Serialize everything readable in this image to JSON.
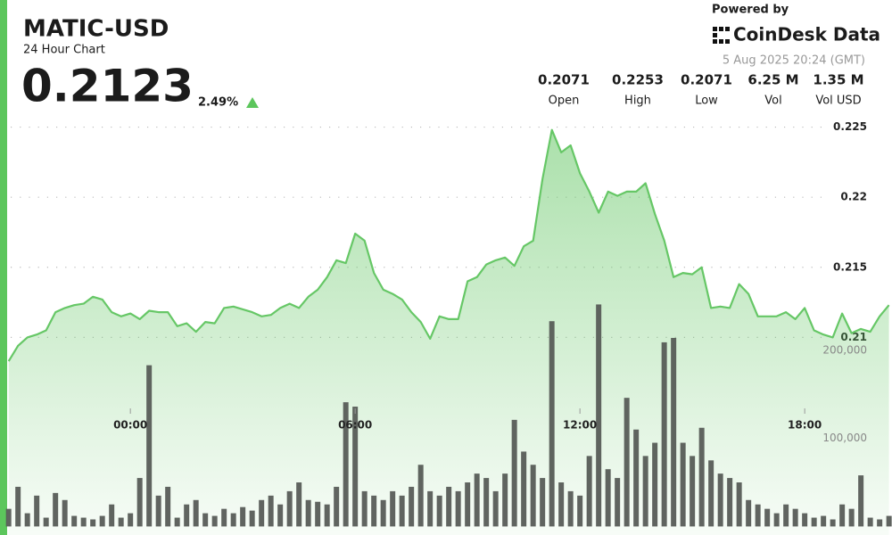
{
  "header": {
    "title": "MATIC-USD",
    "subtitle": "24 Hour Chart",
    "price": "0.2123",
    "change": "2.49%",
    "powered": "Powered by",
    "brand": "CoinDesk Data",
    "timestamp": "5 Aug 2025 20:24 (GMT)"
  },
  "stats": [
    {
      "value": "0.2071",
      "label": "Open"
    },
    {
      "value": "0.2253",
      "label": "High"
    },
    {
      "value": "0.2071",
      "label": "Low"
    },
    {
      "value": "6.25 M",
      "label": "Vol"
    },
    {
      "value": "1.35 M",
      "label": "Vol USD"
    }
  ],
  "chart_data": {
    "type": "line",
    "x": [
      -3.25,
      -3,
      -2.75,
      -2.5,
      -2.25,
      -2,
      -1.75,
      -1.5,
      -1.25,
      -1,
      -0.75,
      -0.5,
      -0.25,
      0,
      0.25,
      0.5,
      0.75,
      1,
      1.25,
      1.5,
      1.75,
      2,
      2.25,
      2.5,
      2.75,
      3,
      3.25,
      3.5,
      3.75,
      4,
      4.25,
      4.5,
      4.75,
      5,
      5.25,
      5.5,
      5.75,
      6,
      6.25,
      6.5,
      6.75,
      7,
      7.25,
      7.5,
      7.75,
      8,
      8.25,
      8.5,
      8.75,
      9,
      9.25,
      9.5,
      9.75,
      10,
      10.25,
      10.5,
      10.75,
      11,
      11.25,
      11.5,
      11.75,
      12,
      12.25,
      12.5,
      12.75,
      13,
      13.25,
      13.5,
      13.75,
      14,
      14.25,
      14.5,
      14.75,
      15,
      15.25,
      15.5,
      15.75,
      16,
      16.25,
      16.5,
      16.75,
      17,
      17.25,
      17.5,
      17.75,
      18,
      18.25,
      18.5,
      18.75,
      19,
      19.25,
      19.5,
      19.75,
      20,
      20.25
    ],
    "series": [
      {
        "name": "Price",
        "color": "#66c766",
        "values": [
          0.2083,
          0.2094,
          0.21,
          0.2102,
          0.2105,
          0.2118,
          0.2121,
          0.2123,
          0.2124,
          0.2129,
          0.2127,
          0.2118,
          0.2115,
          0.2117,
          0.2113,
          0.2119,
          0.2118,
          0.2118,
          0.2108,
          0.211,
          0.2104,
          0.2111,
          0.211,
          0.2121,
          0.2122,
          0.212,
          0.2118,
          0.2115,
          0.2116,
          0.2121,
          0.2124,
          0.2121,
          0.2129,
          0.2134,
          0.2143,
          0.2155,
          0.2153,
          0.2174,
          0.2169,
          0.2146,
          0.2134,
          0.2131,
          0.2127,
          0.2118,
          0.2111,
          0.2099,
          0.2115,
          0.2113,
          0.2113,
          0.214,
          0.2143,
          0.2152,
          0.2155,
          0.2157,
          0.2151,
          0.2165,
          0.2169,
          0.2213,
          0.2248,
          0.2232,
          0.2237,
          0.2217,
          0.2204,
          0.2189,
          0.2204,
          0.2201,
          0.2204,
          0.2204,
          0.221,
          0.2188,
          0.2169,
          0.2143,
          0.2146,
          0.2145,
          0.215,
          0.2121,
          0.2122,
          0.2121,
          0.2138,
          0.2131,
          0.2115,
          0.2115,
          0.2115,
          0.2118,
          0.2113,
          0.2121,
          0.2105,
          0.2102,
          0.21,
          0.2117,
          0.2103,
          0.2106,
          0.2104,
          0.2115,
          0.2123
        ]
      },
      {
        "name": "Volume",
        "color": "#575c57",
        "axis": "y2",
        "values": [
          20000,
          45000,
          15000,
          35000,
          10000,
          38000,
          30000,
          12000,
          10000,
          8000,
          12000,
          25000,
          10000,
          15000,
          55000,
          183000,
          35000,
          45000,
          10000,
          25000,
          30000,
          15000,
          12000,
          20000,
          15000,
          22000,
          18000,
          30000,
          35000,
          25000,
          40000,
          50000,
          30000,
          28000,
          25000,
          45000,
          141000,
          136000,
          40000,
          35000,
          30000,
          40000,
          35000,
          45000,
          70000,
          40000,
          35000,
          45000,
          40000,
          50000,
          60000,
          55000,
          40000,
          60000,
          121000,
          85000,
          70000,
          55000,
          233000,
          50000,
          40000,
          35000,
          80000,
          252000,
          65000,
          55000,
          146000,
          110000,
          80000,
          95000,
          209000,
          214000,
          95000,
          80000,
          112000,
          75000,
          60000,
          55000,
          50000,
          30000,
          25000,
          20000,
          15000,
          25000,
          20000,
          15000,
          10000,
          12000,
          8000,
          25000,
          20000,
          58000,
          10000,
          8000,
          12000
        ]
      }
    ],
    "xlim": [
      -3.29,
      20.33
    ],
    "xticks": [
      {
        "value": 0,
        "label": "00:00"
      },
      {
        "value": 6,
        "label": "06:00"
      },
      {
        "value": 12,
        "label": "12:00"
      },
      {
        "value": 18,
        "label": "18:00"
      }
    ],
    "ylim": [
      0.1959,
      0.2258
    ],
    "yticks": [
      0.21,
      0.215,
      0.22,
      0.225
    ],
    "y2lim": [
      -9700,
      466000
    ],
    "y2ticks": [
      {
        "value": 100000,
        "label": "100,000"
      },
      {
        "value": 200000,
        "label": "200,000"
      }
    ],
    "grid": true
  }
}
